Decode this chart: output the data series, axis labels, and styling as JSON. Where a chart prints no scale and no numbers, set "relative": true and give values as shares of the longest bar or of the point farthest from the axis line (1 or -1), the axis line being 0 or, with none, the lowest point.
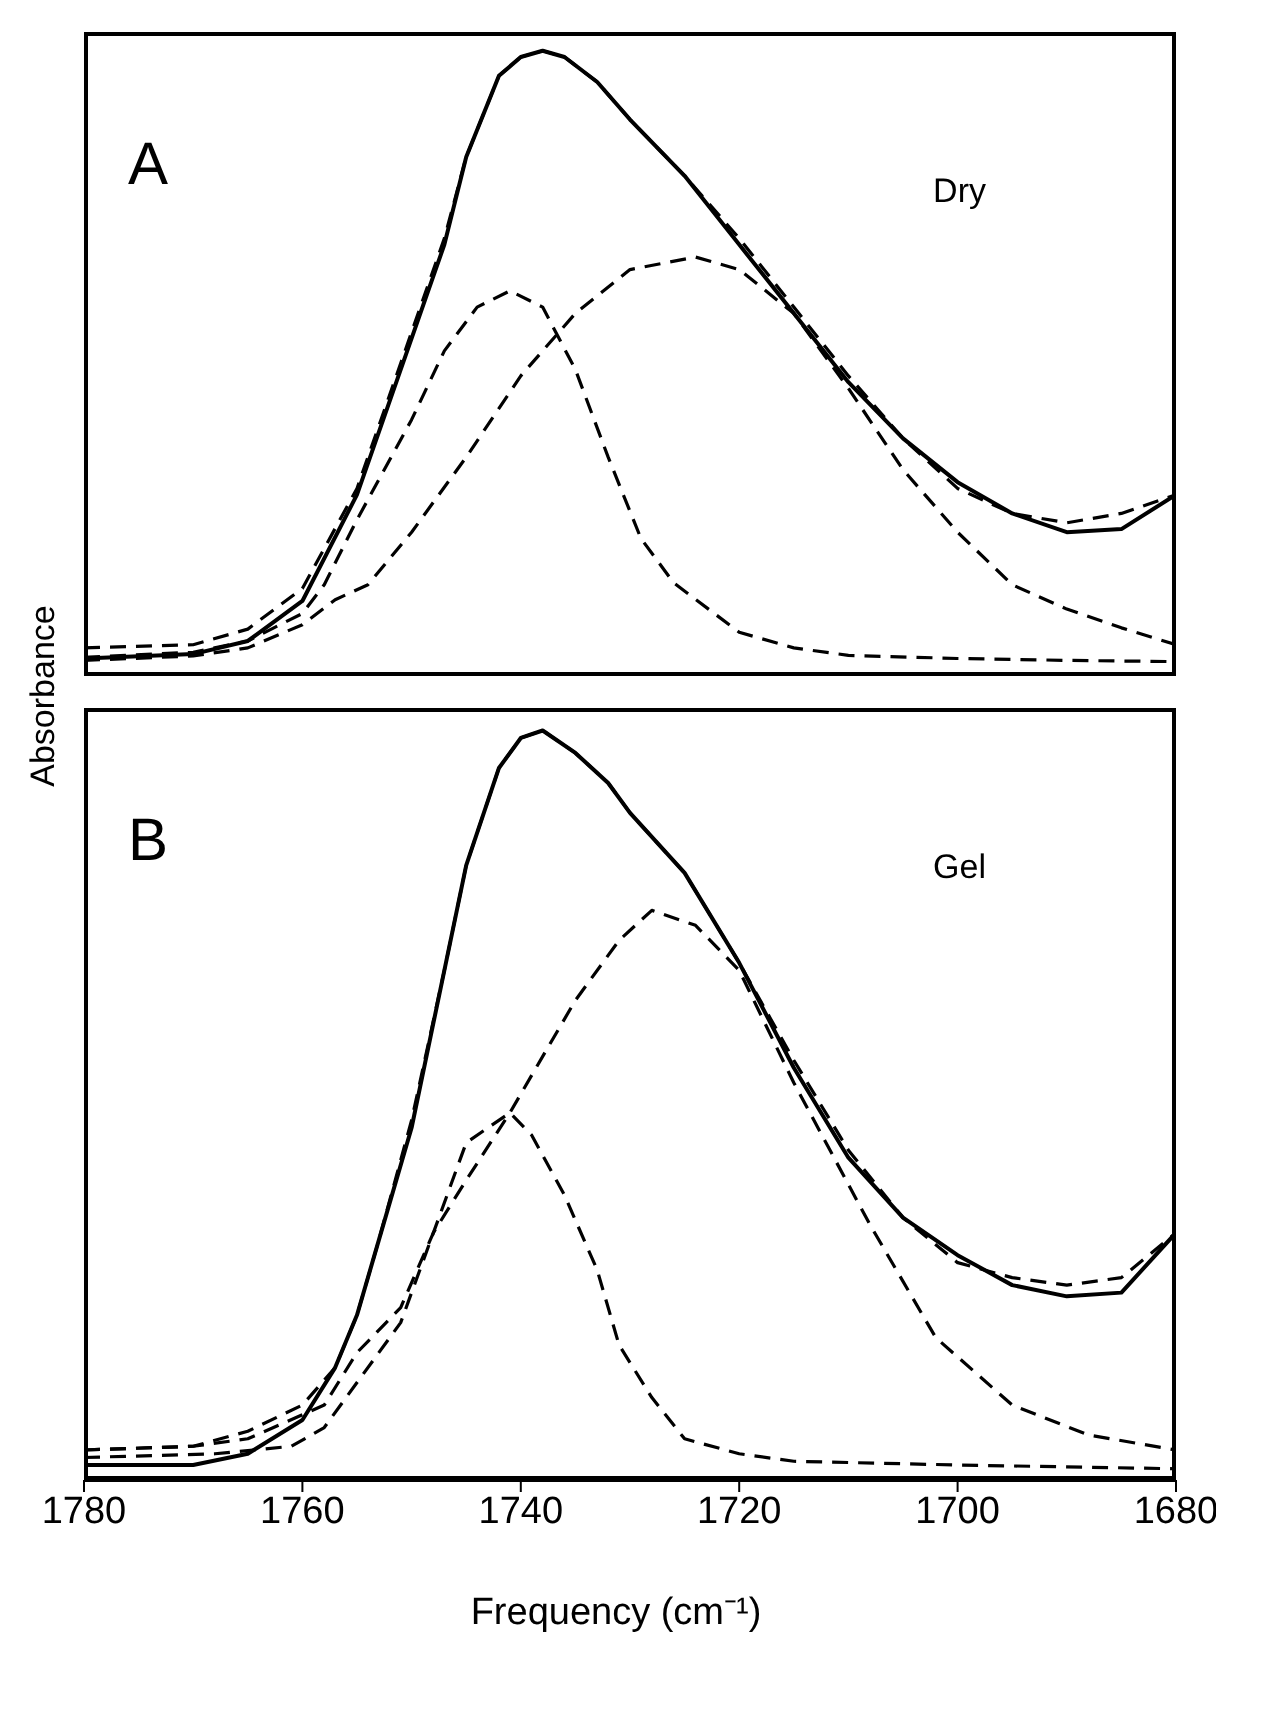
{
  "chart_data": [
    {
      "type": "line",
      "relative": true,
      "xlim": [
        1780,
        1680
      ],
      "tick_labels": false,
      "ylabel": "Absorbance",
      "annotations": [
        "A",
        "Dry"
      ],
      "marker": "none",
      "series": [
        {
          "line_style": "solid",
          "color": "#000000",
          "x": [
            1780,
            1770,
            1765,
            1760,
            1755,
            1750,
            1747,
            1745,
            1742,
            1740,
            1738,
            1736,
            1733,
            1730,
            1725,
            1720,
            1715,
            1710,
            1705,
            1700,
            1695,
            1690,
            1685,
            1680
          ],
          "values": [
            0.028,
            0.035,
            0.056,
            0.12,
            0.29,
            0.54,
            0.69,
            0.83,
            0.96,
            0.99,
            1,
            0.99,
            0.95,
            0.89,
            0.8,
            0.69,
            0.58,
            0.47,
            0.38,
            0.31,
            0.26,
            0.23,
            0.235,
            0.29
          ]
        },
        {
          "line_style": "dashed",
          "color": "#000000",
          "x": [
            1780,
            1770,
            1765,
            1760,
            1755,
            1750,
            1747,
            1745,
            1742,
            1740,
            1738,
            1736,
            1733,
            1730,
            1725,
            1720,
            1715,
            1710,
            1705,
            1700,
            1695,
            1690,
            1685,
            1680
          ],
          "values": [
            0.045,
            0.05,
            0.075,
            0.14,
            0.3,
            0.55,
            0.7,
            0.83,
            0.96,
            0.99,
            1,
            0.99,
            0.95,
            0.89,
            0.8,
            0.7,
            0.59,
            0.48,
            0.38,
            0.3,
            0.26,
            0.245,
            0.26,
            0.29
          ]
        },
        {
          "line_style": "dashed",
          "color": "#000000",
          "x": [
            1780,
            1770,
            1765,
            1760,
            1758,
            1755,
            1750,
            1747,
            1744,
            1741,
            1738,
            1735,
            1732,
            1729,
            1726,
            1720,
            1715,
            1710,
            1700,
            1690,
            1680
          ],
          "values": [
            0.03,
            0.038,
            0.056,
            0.1,
            0.146,
            0.25,
            0.41,
            0.52,
            0.59,
            0.616,
            0.59,
            0.49,
            0.35,
            0.22,
            0.149,
            0.07,
            0.045,
            0.033,
            0.028,
            0.025,
            0.023
          ]
        },
        {
          "line_style": "dashed",
          "color": "#000000",
          "x": [
            1780,
            1770,
            1765,
            1760,
            1757,
            1754,
            1750,
            1745,
            1740,
            1735,
            1730,
            1724,
            1720,
            1715,
            1710,
            1705,
            1700,
            1695,
            1690,
            1685,
            1680
          ],
          "values": [
            0.025,
            0.032,
            0.045,
            0.082,
            0.122,
            0.146,
            0.23,
            0.35,
            0.48,
            0.58,
            0.65,
            0.67,
            0.65,
            0.58,
            0.46,
            0.33,
            0.23,
            0.146,
            0.107,
            0.077,
            0.05
          ]
        }
      ]
    },
    {
      "type": "line",
      "relative": true,
      "xlim": [
        1780,
        1680
      ],
      "xticks": [
        1780,
        1760,
        1740,
        1720,
        1700,
        1680
      ],
      "tick_labels": "x",
      "xlabel": "Frequency  (cm⁻¹)",
      "annotations": [
        "B",
        "Gel"
      ],
      "marker": "none",
      "series": [
        {
          "line_style": "solid",
          "color": "#000000",
          "x": [
            1780,
            1770,
            1765,
            1760,
            1757,
            1755,
            1753,
            1750,
            1747,
            1745,
            1742,
            1740,
            1738,
            1735,
            1732,
            1730,
            1725,
            1720,
            1715,
            1710,
            1705,
            1700,
            1695,
            1690,
            1685,
            1680
          ],
          "values": [
            0.02,
            0.02,
            0.035,
            0.08,
            0.15,
            0.22,
            0.32,
            0.47,
            0.68,
            0.82,
            0.95,
            0.99,
            1,
            0.97,
            0.93,
            0.89,
            0.81,
            0.69,
            0.55,
            0.43,
            0.35,
            0.3,
            0.26,
            0.245,
            0.25,
            0.33
          ]
        },
        {
          "line_style": "dashed",
          "color": "#000000",
          "x": [
            1780,
            1770,
            1765,
            1760,
            1757,
            1755,
            1753,
            1750,
            1747,
            1745,
            1742,
            1740,
            1738,
            1735,
            1732,
            1730,
            1725,
            1720,
            1715,
            1710,
            1705,
            1700,
            1695,
            1690,
            1685,
            1680
          ],
          "values": [
            0.04,
            0.045,
            0.065,
            0.1,
            0.15,
            0.22,
            0.32,
            0.48,
            0.68,
            0.82,
            0.95,
            0.99,
            1,
            0.97,
            0.93,
            0.89,
            0.81,
            0.69,
            0.56,
            0.44,
            0.35,
            0.29,
            0.27,
            0.26,
            0.27,
            0.33
          ]
        },
        {
          "line_style": "dashed",
          "color": "#000000",
          "x": [
            1780,
            1768,
            1761,
            1758,
            1755,
            1751,
            1748,
            1745,
            1741,
            1739,
            1736,
            1733,
            1731,
            1728,
            1725,
            1720,
            1715,
            1700,
            1680
          ],
          "values": [
            0.03,
            0.035,
            0.045,
            0.07,
            0.13,
            0.21,
            0.33,
            0.45,
            0.49,
            0.46,
            0.38,
            0.28,
            0.18,
            0.11,
            0.055,
            0.035,
            0.025,
            0.02,
            0.015
          ]
        },
        {
          "line_style": "dashed",
          "color": "#000000",
          "x": [
            1780,
            1770,
            1765,
            1758,
            1755,
            1751,
            1748,
            1745,
            1741,
            1735,
            1731,
            1728,
            1724,
            1720,
            1715,
            1708,
            1702,
            1695,
            1688,
            1680
          ],
          "values": [
            0.04,
            0.045,
            0.055,
            0.1,
            0.17,
            0.23,
            0.33,
            0.4,
            0.49,
            0.64,
            0.72,
            0.76,
            0.74,
            0.68,
            0.53,
            0.34,
            0.19,
            0.1,
            0.06,
            0.04
          ]
        }
      ]
    }
  ]
}
